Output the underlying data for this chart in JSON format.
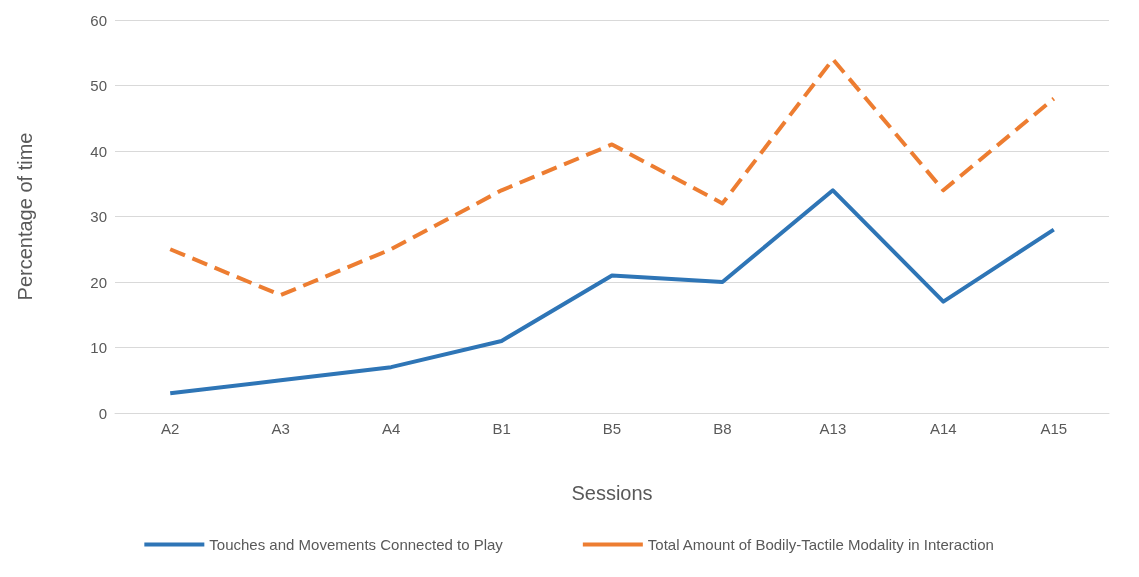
{
  "chart_data": {
    "type": "line",
    "xlabel": "Sessions",
    "ylabel": "Percentage of time",
    "categories": [
      "A2",
      "A3",
      "A4",
      "B1",
      "B5",
      "B8",
      "A13",
      "A14",
      "A15"
    ],
    "series": [
      {
        "name": "Touches and Movements Connected to Play",
        "color": "#2e75b6",
        "line_style": "solid",
        "values": [
          3,
          5,
          7,
          11,
          21,
          20,
          34,
          17,
          28
        ]
      },
      {
        "name": "Total Amount of Bodily-Tactile Modality in Interaction",
        "color": "#ed7d31",
        "line_style": "dashed",
        "values": [
          25,
          18,
          25,
          34,
          41,
          32,
          54,
          34,
          48
        ]
      }
    ],
    "ylim": [
      0,
      60
    ],
    "yticks": [
      0,
      10,
      20,
      30,
      40,
      50,
      60
    ],
    "grid": "y",
    "legend": "bottom",
    "marker": "none"
  }
}
